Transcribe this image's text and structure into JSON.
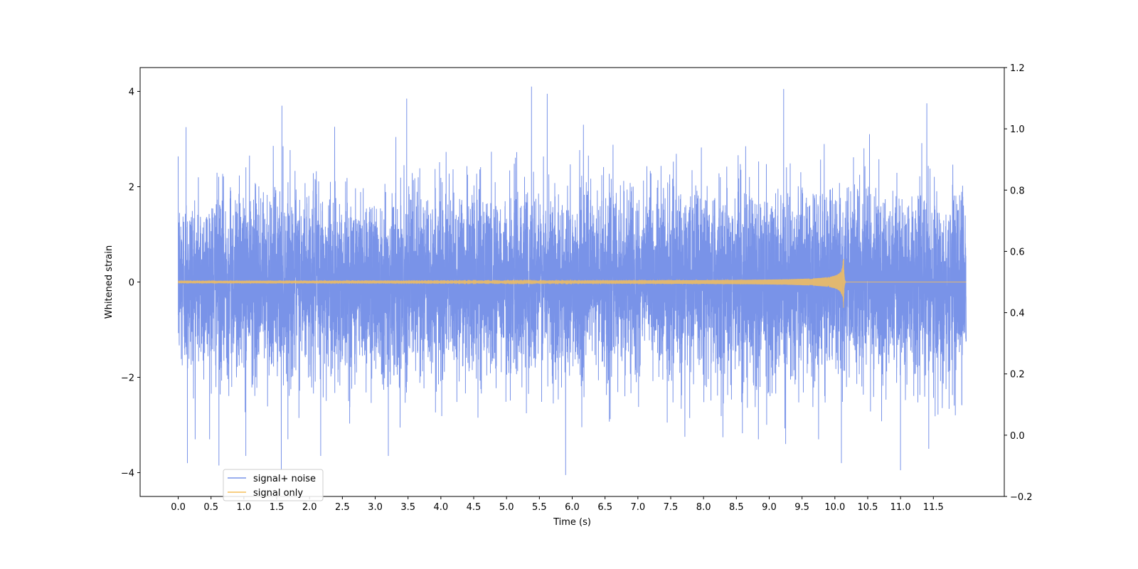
{
  "chart_data": {
    "type": "line",
    "title": "",
    "xlabel": "Time (s)",
    "ylabel": "Whitened strain",
    "y2label": "",
    "xlim": [
      -0.58,
      12.58
    ],
    "ylim": [
      -4.5,
      4.5
    ],
    "y2lim": [
      -0.2,
      1.2
    ],
    "x_ticks": [
      0.0,
      0.5,
      1.0,
      1.5,
      2.0,
      2.5,
      3.0,
      3.5,
      4.0,
      4.5,
      5.0,
      5.5,
      6.0,
      6.5,
      7.0,
      7.5,
      8.0,
      8.5,
      9.0,
      9.5,
      10.0,
      10.5,
      11.0,
      11.5
    ],
    "x_tick_labels": [
      "0.0",
      "0.5",
      "1.0",
      "1.5",
      "2.0",
      "2.5",
      "3.0",
      "3.5",
      "4.0",
      "4.5",
      "5.0",
      "5.5",
      "6.0",
      "6.5",
      "7.0",
      "7.5",
      "8.0",
      "8.5",
      "9.0",
      "9.5",
      "10.0",
      "10.5",
      "11.0",
      "11.5"
    ],
    "y_ticks": [
      -4,
      -2,
      0,
      2,
      4
    ],
    "y_tick_labels": [
      "−4",
      "−2",
      "0",
      "2",
      "4"
    ],
    "y2_ticks": [
      -0.2,
      0.0,
      0.2,
      0.4,
      0.6,
      0.8,
      1.0,
      1.2
    ],
    "y2_tick_labels": [
      "−0.2",
      "0.0",
      "0.2",
      "0.4",
      "0.6",
      "0.8",
      "1.0",
      "1.2"
    ],
    "grid": false,
    "legend_placement": "lower-left",
    "series": [
      {
        "name": "signal+ noise",
        "color": "#7993e8",
        "x_range": [
          0.0,
          12.0
        ],
        "noise_std": 1.0,
        "sample_peaks": [
          {
            "x": 0.12,
            "y": 3.25
          },
          {
            "x": 0.14,
            "y": -3.8
          },
          {
            "x": 0.62,
            "y": -3.85
          },
          {
            "x": 1.03,
            "y": -3.65
          },
          {
            "x": 1.58,
            "y": 3.7
          },
          {
            "x": 1.57,
            "y": -3.95
          },
          {
            "x": 2.17,
            "y": -3.65
          },
          {
            "x": 3.2,
            "y": -3.65
          },
          {
            "x": 3.48,
            "y": 3.85
          },
          {
            "x": 5.38,
            "y": 4.1
          },
          {
            "x": 5.62,
            "y": 3.95
          },
          {
            "x": 5.9,
            "y": -4.05
          },
          {
            "x": 9.22,
            "y": 4.05
          },
          {
            "x": 9.25,
            "y": -3.4
          },
          {
            "x": 10.1,
            "y": -3.8
          },
          {
            "x": 11.0,
            "y": -3.95
          },
          {
            "x": 11.4,
            "y": 3.75
          },
          {
            "x": 11.43,
            "y": -3.5
          }
        ]
      },
      {
        "name": "signal only",
        "color": "#f5be5a",
        "x_range": [
          0.0,
          12.0
        ],
        "merger_time": 10.13,
        "peak_positive": 0.8,
        "peak_negative": -0.65
      }
    ]
  }
}
